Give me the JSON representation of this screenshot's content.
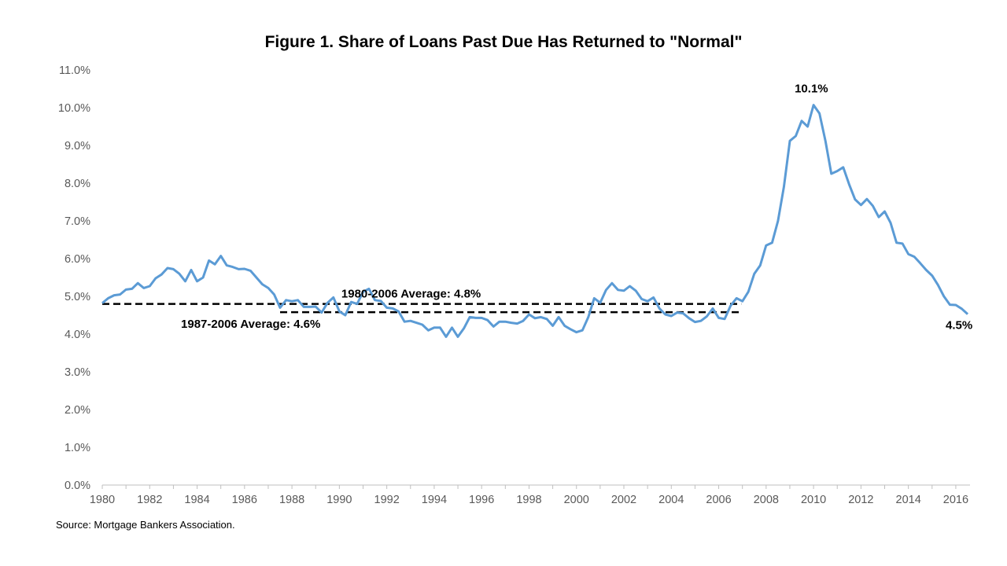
{
  "chart_data": {
    "type": "line",
    "title": "Figure 1. Share of Loans Past Due Has Returned to \"Normal\"",
    "source": "Source: Mortgage Bankers Association.",
    "xlabel": "",
    "ylabel": "",
    "xlim": [
      1980,
      2016.6
    ],
    "ylim": [
      0,
      11
    ],
    "y_ticks": [
      "0.0%",
      "1.0%",
      "2.0%",
      "3.0%",
      "4.0%",
      "5.0%",
      "6.0%",
      "7.0%",
      "8.0%",
      "9.0%",
      "10.0%",
      "11.0%"
    ],
    "x_ticks": [
      "1980",
      "1982",
      "1984",
      "1986",
      "1988",
      "1990",
      "1992",
      "1994",
      "1996",
      "1998",
      "2000",
      "2002",
      "2004",
      "2006",
      "2008",
      "2010",
      "2012",
      "2014",
      "2016"
    ],
    "grid": false,
    "legend": "none",
    "series": [
      {
        "color": "#5B9BD5",
        "points": [
          [
            1980.0,
            4.82
          ],
          [
            1980.25,
            4.95
          ],
          [
            1980.5,
            5.03
          ],
          [
            1980.75,
            5.05
          ],
          [
            1981.0,
            5.18
          ],
          [
            1981.25,
            5.2
          ],
          [
            1981.5,
            5.35
          ],
          [
            1981.75,
            5.22
          ],
          [
            1982.0,
            5.27
          ],
          [
            1982.25,
            5.48
          ],
          [
            1982.5,
            5.58
          ],
          [
            1982.75,
            5.75
          ],
          [
            1983.0,
            5.72
          ],
          [
            1983.25,
            5.6
          ],
          [
            1983.5,
            5.4
          ],
          [
            1983.75,
            5.7
          ],
          [
            1984.0,
            5.4
          ],
          [
            1984.25,
            5.5
          ],
          [
            1984.5,
            5.95
          ],
          [
            1984.75,
            5.85
          ],
          [
            1985.0,
            6.07
          ],
          [
            1985.25,
            5.82
          ],
          [
            1985.5,
            5.78
          ],
          [
            1985.75,
            5.72
          ],
          [
            1986.0,
            5.73
          ],
          [
            1986.25,
            5.68
          ],
          [
            1986.5,
            5.5
          ],
          [
            1986.75,
            5.32
          ],
          [
            1987.0,
            5.22
          ],
          [
            1987.25,
            5.05
          ],
          [
            1987.5,
            4.7
          ],
          [
            1987.75,
            4.9
          ],
          [
            1988.0,
            4.87
          ],
          [
            1988.25,
            4.9
          ],
          [
            1988.5,
            4.72
          ],
          [
            1988.75,
            4.72
          ],
          [
            1989.0,
            4.73
          ],
          [
            1989.25,
            4.57
          ],
          [
            1989.5,
            4.83
          ],
          [
            1989.75,
            4.97
          ],
          [
            1990.0,
            4.6
          ],
          [
            1990.25,
            4.5
          ],
          [
            1990.5,
            4.85
          ],
          [
            1990.75,
            4.8
          ],
          [
            1991.0,
            5.12
          ],
          [
            1991.25,
            5.2
          ],
          [
            1991.5,
            4.9
          ],
          [
            1991.75,
            4.88
          ],
          [
            1992.0,
            4.7
          ],
          [
            1992.25,
            4.68
          ],
          [
            1992.5,
            4.6
          ],
          [
            1992.75,
            4.33
          ],
          [
            1993.0,
            4.35
          ],
          [
            1993.25,
            4.3
          ],
          [
            1993.5,
            4.25
          ],
          [
            1993.75,
            4.1
          ],
          [
            1994.0,
            4.17
          ],
          [
            1994.25,
            4.17
          ],
          [
            1994.5,
            3.93
          ],
          [
            1994.75,
            4.17
          ],
          [
            1995.0,
            3.93
          ],
          [
            1995.25,
            4.15
          ],
          [
            1995.5,
            4.45
          ],
          [
            1995.75,
            4.43
          ],
          [
            1996.0,
            4.43
          ],
          [
            1996.25,
            4.37
          ],
          [
            1996.5,
            4.2
          ],
          [
            1996.75,
            4.33
          ],
          [
            1997.0,
            4.33
          ],
          [
            1997.25,
            4.3
          ],
          [
            1997.5,
            4.28
          ],
          [
            1997.75,
            4.35
          ],
          [
            1998.0,
            4.52
          ],
          [
            1998.25,
            4.42
          ],
          [
            1998.5,
            4.45
          ],
          [
            1998.75,
            4.4
          ],
          [
            1999.0,
            4.22
          ],
          [
            1999.25,
            4.45
          ],
          [
            1999.5,
            4.22
          ],
          [
            1999.75,
            4.13
          ],
          [
            2000.0,
            4.05
          ],
          [
            2000.25,
            4.1
          ],
          [
            2000.5,
            4.45
          ],
          [
            2000.75,
            4.95
          ],
          [
            2001.0,
            4.83
          ],
          [
            2001.25,
            5.17
          ],
          [
            2001.5,
            5.35
          ],
          [
            2001.75,
            5.17
          ],
          [
            2002.0,
            5.15
          ],
          [
            2002.25,
            5.27
          ],
          [
            2002.5,
            5.15
          ],
          [
            2002.75,
            4.93
          ],
          [
            2003.0,
            4.87
          ],
          [
            2003.25,
            4.97
          ],
          [
            2003.5,
            4.68
          ],
          [
            2003.75,
            4.52
          ],
          [
            2004.0,
            4.48
          ],
          [
            2004.25,
            4.57
          ],
          [
            2004.5,
            4.55
          ],
          [
            2004.75,
            4.42
          ],
          [
            2005.0,
            4.32
          ],
          [
            2005.25,
            4.35
          ],
          [
            2005.5,
            4.47
          ],
          [
            2005.75,
            4.68
          ],
          [
            2006.0,
            4.43
          ],
          [
            2006.25,
            4.4
          ],
          [
            2006.5,
            4.75
          ],
          [
            2006.75,
            4.95
          ],
          [
            2007.0,
            4.87
          ],
          [
            2007.25,
            5.12
          ],
          [
            2007.5,
            5.6
          ],
          [
            2007.75,
            5.82
          ],
          [
            2008.0,
            6.35
          ],
          [
            2008.25,
            6.42
          ],
          [
            2008.5,
            7.0
          ],
          [
            2008.75,
            7.9
          ],
          [
            2009.0,
            9.12
          ],
          [
            2009.25,
            9.25
          ],
          [
            2009.5,
            9.65
          ],
          [
            2009.75,
            9.5
          ],
          [
            2010.0,
            10.07
          ],
          [
            2010.25,
            9.85
          ],
          [
            2010.5,
            9.12
          ],
          [
            2010.75,
            8.25
          ],
          [
            2011.0,
            8.32
          ],
          [
            2011.25,
            8.42
          ],
          [
            2011.5,
            7.97
          ],
          [
            2011.75,
            7.57
          ],
          [
            2012.0,
            7.42
          ],
          [
            2012.25,
            7.58
          ],
          [
            2012.5,
            7.4
          ],
          [
            2012.75,
            7.1
          ],
          [
            2013.0,
            7.25
          ],
          [
            2013.25,
            6.95
          ],
          [
            2013.5,
            6.42
          ],
          [
            2013.75,
            6.4
          ],
          [
            2014.0,
            6.12
          ],
          [
            2014.25,
            6.05
          ],
          [
            2014.5,
            5.88
          ],
          [
            2014.75,
            5.7
          ],
          [
            2015.0,
            5.55
          ],
          [
            2015.25,
            5.3
          ],
          [
            2015.5,
            5.0
          ],
          [
            2015.75,
            4.78
          ],
          [
            2016.0,
            4.77
          ],
          [
            2016.25,
            4.67
          ],
          [
            2016.5,
            4.53
          ]
        ]
      }
    ],
    "reference_lines": [
      {
        "label": "1980-2006 Average: 4.8%",
        "value": 4.8,
        "x_start": 1980.0,
        "x_end": 2006.95,
        "style": "dashed",
        "color": "#000000"
      },
      {
        "label": "1987-2006 Average: 4.6%",
        "value": 4.58,
        "x_start": 1987.5,
        "x_end": 2006.95,
        "style": "dashed",
        "color": "#000000"
      }
    ],
    "annotations": [
      {
        "text": "10.1%",
        "x": 2010.0,
        "y": 10.07
      },
      {
        "text": "4.5%",
        "x": 2016.5,
        "y": 4.53
      },
      {
        "text": "1980-2006 Average: 4.8%",
        "x": 1994.0,
        "y": 4.8
      },
      {
        "text": "1987-2006 Average: 4.6%",
        "x": 1987.5,
        "y": 4.58
      }
    ]
  }
}
